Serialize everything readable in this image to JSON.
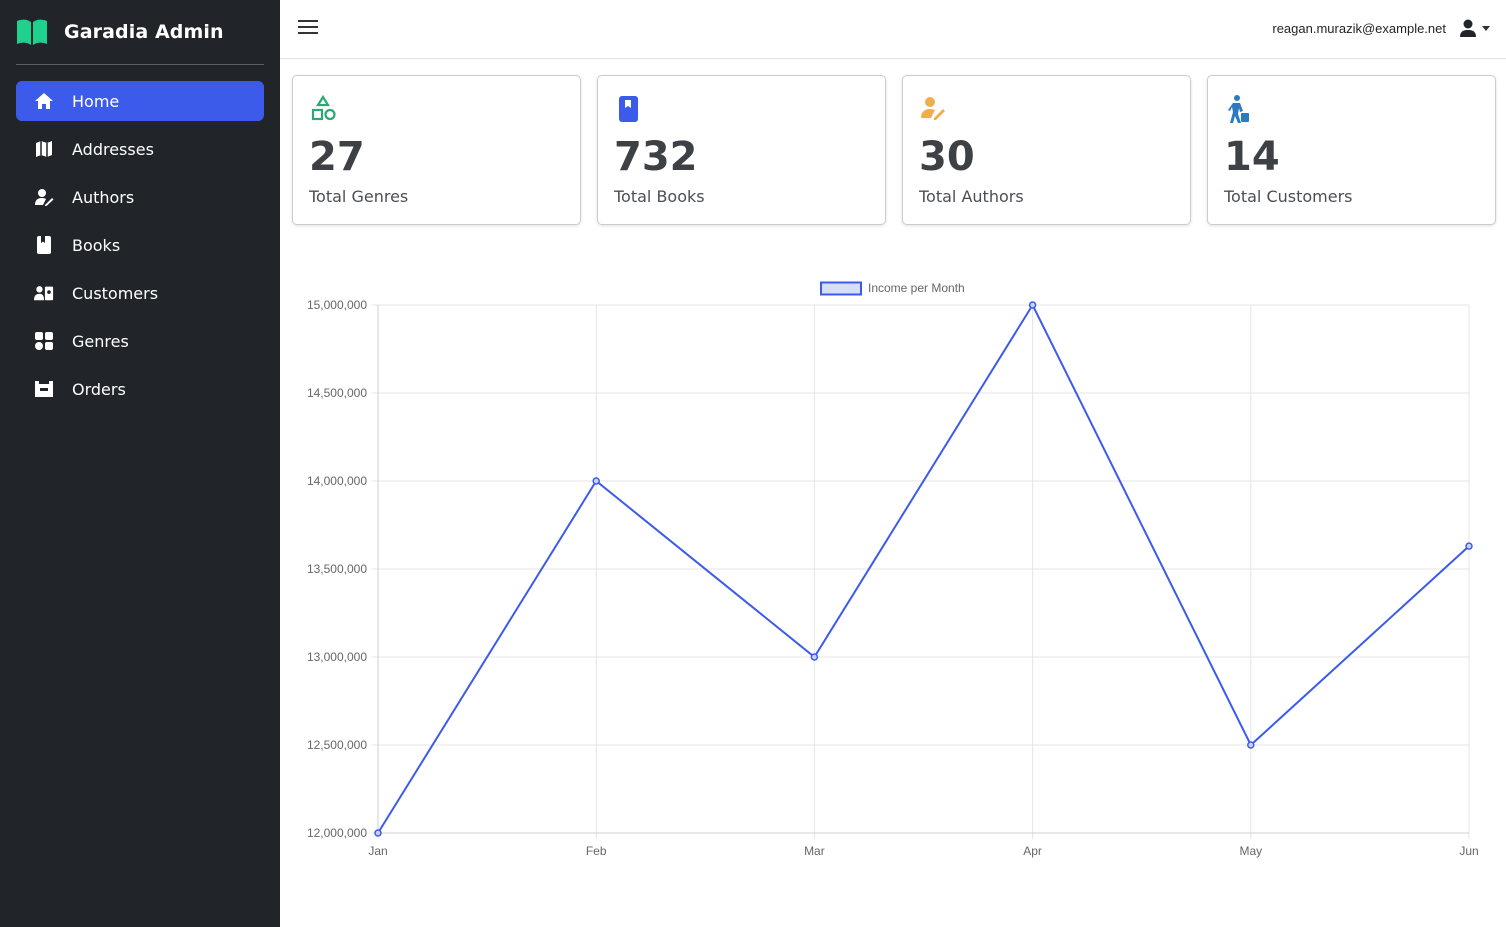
{
  "app": {
    "title": "Garadia Admin"
  },
  "sidebar": {
    "items": [
      {
        "label": "Home",
        "icon": "home-icon",
        "active": true
      },
      {
        "label": "Addresses",
        "icon": "map-icon",
        "active": false
      },
      {
        "label": "Authors",
        "icon": "user-pen-icon",
        "active": false
      },
      {
        "label": "Books",
        "icon": "book-icon",
        "active": false
      },
      {
        "label": "Customers",
        "icon": "id-card-icon",
        "active": false
      },
      {
        "label": "Genres",
        "icon": "shapes-icon",
        "active": false
      },
      {
        "label": "Orders",
        "icon": "basket-icon",
        "active": false
      }
    ]
  },
  "header": {
    "user_email": "reagan.murazik@example.net"
  },
  "cards": [
    {
      "value": "27",
      "label": "Total Genres",
      "icon": "shapes-icon",
      "color": "#2aa876"
    },
    {
      "value": "732",
      "label": "Total Books",
      "icon": "book-icon",
      "color": "#3d5bea"
    },
    {
      "value": "30",
      "label": "Total Authors",
      "icon": "user-pen-icon",
      "color": "#f0ad4e"
    },
    {
      "value": "14",
      "label": "Total Customers",
      "icon": "traveler-icon",
      "color": "#2b7bc0"
    }
  ],
  "colors": {
    "accent": "#3d5bea",
    "sidebar_bg": "#212529",
    "line": "#3d5bea"
  },
  "chart_data": {
    "type": "line",
    "categories": [
      "Jan",
      "Feb",
      "Mar",
      "Apr",
      "May",
      "Jun"
    ],
    "series": [
      {
        "name": "Income per Month",
        "values": [
          12000000,
          14000000,
          13000000,
          15000000,
          12500000,
          13630000
        ]
      }
    ],
    "yticks": [
      "15,000,000",
      "14,500,000",
      "14,000,000",
      "13,500,000",
      "13,000,000",
      "12,500,000",
      "12,000,000"
    ],
    "ylim": [
      12000000,
      15000000
    ],
    "grid": true,
    "legend": "top"
  }
}
